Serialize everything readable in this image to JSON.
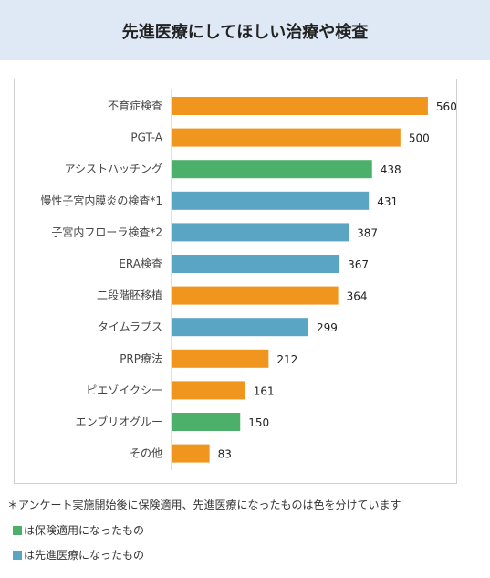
{
  "header": {
    "title": "先進医療にしてほしい治療や検査"
  },
  "colors": {
    "orange": "#f0961e",
    "green": "#4caf6a",
    "blue": "#5aa5c4",
    "header_bg": "#dfe9f5"
  },
  "chart_data": {
    "type": "bar",
    "orientation": "horizontal",
    "title": "",
    "xlabel": "",
    "ylabel": "",
    "xlim": [
      0,
      600
    ],
    "grid": false,
    "categories": [
      "不育症検査",
      "PGT-A",
      "アシストハッチング",
      "慢性子宮内膜炎の検査*1",
      "子宮内フローラ検査*2",
      "ERA検査",
      "二段階胚移植",
      "タイムラプス",
      "PRP療法",
      "ピエゾイクシー",
      "エンブリオグルー",
      "その他"
    ],
    "values": [
      560,
      500,
      438,
      431,
      387,
      367,
      364,
      299,
      212,
      161,
      150,
      83
    ],
    "bar_colors": [
      "orange",
      "orange",
      "green",
      "blue",
      "blue",
      "blue",
      "orange",
      "blue",
      "orange",
      "orange",
      "green",
      "orange"
    ]
  },
  "footnote": "＊アンケート実施開始後に保険適用、先進医療になったものは色を分けています",
  "legend": [
    {
      "color": "green",
      "label": "は保険適用になったもの"
    },
    {
      "color": "blue",
      "label": "は先進医療になったもの"
    }
  ]
}
